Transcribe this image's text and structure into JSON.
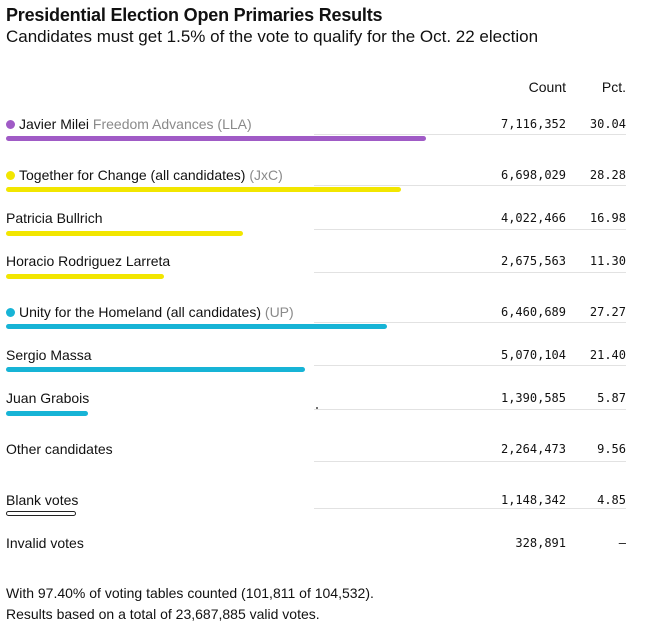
{
  "title": "Presidential Election Open Primaries Results",
  "subtitle": "Candidates must get 1.5% of the vote to qualify for the Oct. 22 election",
  "columns": {
    "count": "Count",
    "pct": "Pct."
  },
  "colors": {
    "lla": "#a05bc6",
    "jxc": "#f2e600",
    "up": "#17b4d6",
    "outline": "#222222"
  },
  "chart_data": {
    "type": "bar",
    "title": "Presidential Election Open Primaries Results",
    "categories": [
      "Javier Milei",
      "Together for Change (all candidates)",
      "Patricia Bullrich",
      "Horacio Rodriguez Larreta",
      "Unity for the Homeland (all candidates)",
      "Sergio Massa",
      "Juan Grabois",
      "Other candidates",
      "Blank votes",
      "Invalid votes"
    ],
    "values": [
      30.04,
      28.28,
      16.98,
      11.3,
      27.27,
      21.4,
      5.87,
      9.56,
      4.85,
      null
    ],
    "rows": [
      {
        "name": "Javier Milei",
        "party": "Freedom Advances (LLA)",
        "count": "7,116,352",
        "pct": "30.04",
        "value": 30.04,
        "color": "#a05bc6",
        "dot": true,
        "bar": "fill"
      },
      {
        "name": "Together for Change (all candidates)",
        "party": "(JxC)",
        "count": "6,698,029",
        "pct": "28.28",
        "value": 28.28,
        "color": "#f2e600",
        "dot": true,
        "bar": "fill"
      },
      {
        "name": "Patricia Bullrich",
        "party": "",
        "count": "4,022,466",
        "pct": "16.98",
        "value": 16.98,
        "color": "#f2e600",
        "dot": false,
        "bar": "fill"
      },
      {
        "name": "Horacio Rodriguez Larreta",
        "party": "",
        "count": "2,675,563",
        "pct": "11.30",
        "value": 11.3,
        "color": "#f2e600",
        "dot": false,
        "bar": "fill"
      },
      {
        "name": "Unity for the Homeland (all candidates)",
        "party": "(UP)",
        "count": "6,460,689",
        "pct": "27.27",
        "value": 27.27,
        "color": "#17b4d6",
        "dot": true,
        "bar": "fill"
      },
      {
        "name": "Sergio Massa",
        "party": "",
        "count": "5,070,104",
        "pct": "21.40",
        "value": 21.4,
        "color": "#17b4d6",
        "dot": false,
        "bar": "fill"
      },
      {
        "name": "Juan Grabois",
        "party": "",
        "count": "1,390,585",
        "pct": "5.87",
        "value": 5.87,
        "color": "#17b4d6",
        "dot": false,
        "bar": "fill"
      },
      {
        "name": "Other candidates",
        "party": "",
        "count": "2,264,473",
        "pct": "9.56",
        "value": 9.56,
        "color": "",
        "dot": false,
        "bar": "none"
      },
      {
        "name": "Blank votes",
        "party": "",
        "count": "1,148,342",
        "pct": "4.85",
        "value": 4.85,
        "color": "#222222",
        "dot": false,
        "bar": "outline"
      },
      {
        "name": "Invalid votes",
        "party": "",
        "count": "328,891",
        "pct": "–",
        "value": null,
        "color": "",
        "dot": false,
        "bar": "none"
      }
    ]
  },
  "footnote": {
    "line1": "With 97.40% of voting tables counted (101,811 of 104,532).",
    "line2": "Results based on a total of 23,687,885 valid votes."
  }
}
